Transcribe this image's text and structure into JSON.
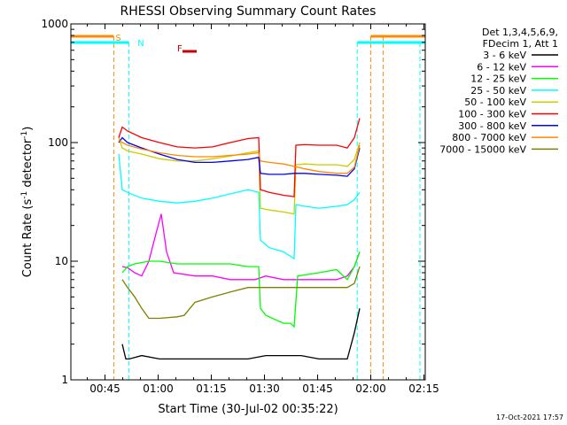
{
  "chart_data": {
    "type": "line",
    "title": "RHESSI Observing Summary Count Rates",
    "xlabel": "Start Time (30-Jul-02 00:35:22)",
    "ylabel_main": "Count Rate (s",
    "ylabel_sup1": "-1",
    "ylabel_mid": " detector",
    "ylabel_sup2": "-1",
    "ylabel_end": ")",
    "x_unit": "minutes after 00:35:22 UT",
    "xlim": [
      0,
      100
    ],
    "ylim": [
      1,
      1000
    ],
    "yscale": "log",
    "x_ticks": [
      {
        "minute": 9.63,
        "label": "00:45"
      },
      {
        "minute": 24.63,
        "label": "01:00"
      },
      {
        "minute": 39.63,
        "label": "01:15"
      },
      {
        "minute": 54.63,
        "label": "01:30"
      },
      {
        "minute": 69.63,
        "label": "01:45"
      },
      {
        "minute": 84.63,
        "label": "02:00"
      },
      {
        "minute": 99.63,
        "label": "02:15"
      }
    ],
    "y_ticks": [
      {
        "value": 1,
        "label": "1"
      },
      {
        "value": 10,
        "label": "10"
      },
      {
        "value": 100,
        "label": "100"
      },
      {
        "value": 1000,
        "label": "1000"
      }
    ],
    "legend_header": [
      "Det 1,3,4,5,6,9,",
      "FDecim 1, Att 1"
    ],
    "legend_position": "right",
    "series": [
      {
        "name": "3 - 6 keV",
        "color": "#000000",
        "points": [
          [
            14.5,
            2
          ],
          [
            15.5,
            1.5
          ],
          [
            16.5,
            1.5
          ],
          [
            20,
            1.6
          ],
          [
            25,
            1.5
          ],
          [
            30,
            1.5
          ],
          [
            40,
            1.5
          ],
          [
            50,
            1.5
          ],
          [
            55,
            1.6
          ],
          [
            60,
            1.6
          ],
          [
            65,
            1.6
          ],
          [
            70,
            1.5
          ],
          [
            78,
            1.5
          ],
          [
            80,
            2.5
          ],
          [
            81.5,
            4
          ]
        ]
      },
      {
        "name": "6 - 12 keV",
        "color": "#ff00ff",
        "points": [
          [
            14.5,
            9
          ],
          [
            16,
            8.8
          ],
          [
            18,
            8
          ],
          [
            20,
            7.5
          ],
          [
            22,
            10
          ],
          [
            24,
            17
          ],
          [
            25.5,
            25
          ],
          [
            27,
            12
          ],
          [
            29,
            8
          ],
          [
            35,
            7.5
          ],
          [
            40,
            7.5
          ],
          [
            45,
            7
          ],
          [
            48,
            7
          ],
          [
            50,
            7
          ],
          [
            52,
            7
          ],
          [
            55,
            7.5
          ],
          [
            60,
            7
          ],
          [
            65,
            7
          ],
          [
            70,
            7
          ],
          [
            75,
            7
          ],
          [
            78,
            7.5
          ],
          [
            80,
            9
          ],
          [
            81.5,
            12
          ]
        ]
      },
      {
        "name": "12 - 25 keV",
        "color": "#00ff00",
        "points": [
          [
            14.5,
            8
          ],
          [
            16,
            9
          ],
          [
            18,
            9.5
          ],
          [
            22,
            10
          ],
          [
            25,
            10
          ],
          [
            30,
            9.5
          ],
          [
            35,
            9.5
          ],
          [
            40,
            9.5
          ],
          [
            45,
            9.5
          ],
          [
            50,
            9
          ],
          [
            53,
            9
          ],
          [
            53.5,
            4
          ],
          [
            55,
            3.5
          ],
          [
            60,
            3
          ],
          [
            62,
            3
          ],
          [
            63,
            2.8
          ],
          [
            64,
            7.5
          ],
          [
            70,
            8
          ],
          [
            75,
            8.5
          ],
          [
            78,
            7
          ],
          [
            80,
            9
          ],
          [
            81.5,
            12
          ]
        ]
      },
      {
        "name": "25 - 50 keV",
        "color": "#00ffff",
        "points": [
          [
            13.5,
            80
          ],
          [
            14.5,
            40
          ],
          [
            16,
            38
          ],
          [
            20,
            34
          ],
          [
            25,
            32
          ],
          [
            30,
            31
          ],
          [
            35,
            32
          ],
          [
            40,
            34
          ],
          [
            45,
            37
          ],
          [
            50,
            40
          ],
          [
            53,
            38
          ],
          [
            53.5,
            15
          ],
          [
            56,
            13
          ],
          [
            60,
            12
          ],
          [
            62,
            11
          ],
          [
            63,
            10.5
          ],
          [
            63.5,
            30
          ],
          [
            66,
            29
          ],
          [
            70,
            28
          ],
          [
            75,
            29
          ],
          [
            78,
            30
          ],
          [
            80,
            33
          ],
          [
            81.5,
            38
          ]
        ]
      },
      {
        "name": "50 - 100 keV",
        "color": "#cccc00",
        "points": [
          [
            13.5,
            110
          ],
          [
            14.5,
            90
          ],
          [
            16,
            85
          ],
          [
            20,
            80
          ],
          [
            25,
            73
          ],
          [
            30,
            70
          ],
          [
            35,
            70
          ],
          [
            40,
            73
          ],
          [
            45,
            77
          ],
          [
            50,
            82
          ],
          [
            53,
            85
          ],
          [
            53.5,
            28
          ],
          [
            56,
            27
          ],
          [
            60,
            26
          ],
          [
            63,
            25
          ],
          [
            63.5,
            65
          ],
          [
            66,
            66
          ],
          [
            70,
            65
          ],
          [
            75,
            65
          ],
          [
            78,
            63
          ],
          [
            80,
            72
          ],
          [
            81.5,
            100
          ]
        ]
      },
      {
        "name": "100 - 300 keV",
        "color": "#ff0000",
        "points": [
          [
            13.5,
            110
          ],
          [
            14.5,
            135
          ],
          [
            16,
            125
          ],
          [
            20,
            110
          ],
          [
            25,
            100
          ],
          [
            30,
            92
          ],
          [
            35,
            90
          ],
          [
            40,
            92
          ],
          [
            45,
            100
          ],
          [
            50,
            108
          ],
          [
            53,
            110
          ],
          [
            53.5,
            40
          ],
          [
            56,
            38
          ],
          [
            60,
            36
          ],
          [
            63,
            35
          ],
          [
            63.5,
            95
          ],
          [
            66,
            96
          ],
          [
            70,
            95
          ],
          [
            75,
            95
          ],
          [
            78,
            90
          ],
          [
            80,
            110
          ],
          [
            81.5,
            160
          ]
        ]
      },
      {
        "name": "300 - 800 keV",
        "color": "#0000ff",
        "points": [
          [
            13.5,
            100
          ],
          [
            14.5,
            110
          ],
          [
            16,
            100
          ],
          [
            20,
            90
          ],
          [
            25,
            80
          ],
          [
            30,
            72
          ],
          [
            35,
            68
          ],
          [
            40,
            68
          ],
          [
            45,
            70
          ],
          [
            50,
            72
          ],
          [
            53,
            75
          ],
          [
            53.5,
            55
          ],
          [
            56,
            54
          ],
          [
            60,
            54
          ],
          [
            63,
            55
          ],
          [
            63.5,
            55
          ],
          [
            66,
            55
          ],
          [
            70,
            54
          ],
          [
            75,
            53
          ],
          [
            78,
            52
          ],
          [
            80,
            60
          ],
          [
            81.5,
            90
          ]
        ]
      },
      {
        "name": "800 - 7000 keV",
        "color": "#ff8800",
        "points": [
          [
            13.5,
            105
          ],
          [
            14.5,
            100
          ],
          [
            16,
            95
          ],
          [
            20,
            88
          ],
          [
            25,
            82
          ],
          [
            30,
            78
          ],
          [
            35,
            76
          ],
          [
            40,
            76
          ],
          [
            45,
            78
          ],
          [
            50,
            80
          ],
          [
            53,
            82
          ],
          [
            53.5,
            70
          ],
          [
            56,
            68
          ],
          [
            60,
            66
          ],
          [
            63,
            63
          ],
          [
            66,
            60
          ],
          [
            70,
            57
          ],
          [
            75,
            55
          ],
          [
            78,
            55
          ],
          [
            80,
            62
          ],
          [
            81.5,
            95
          ]
        ]
      },
      {
        "name": "7000 - 15000 keV",
        "color": "#808000",
        "points": [
          [
            14.5,
            7
          ],
          [
            16,
            6
          ],
          [
            18,
            5
          ],
          [
            20,
            4
          ],
          [
            22,
            3.3
          ],
          [
            25,
            3.3
          ],
          [
            30,
            3.4
          ],
          [
            32,
            3.5
          ],
          [
            35,
            4.5
          ],
          [
            40,
            5
          ],
          [
            45,
            5.5
          ],
          [
            50,
            6
          ],
          [
            53,
            6
          ],
          [
            55,
            6
          ],
          [
            60,
            6
          ],
          [
            65,
            6
          ],
          [
            70,
            6
          ],
          [
            75,
            6
          ],
          [
            78,
            6
          ],
          [
            80,
            6.5
          ],
          [
            81.5,
            9
          ]
        ]
      }
    ],
    "flags": [
      {
        "letter": "S",
        "color": "#ff8800",
        "minute": 12.1
      },
      {
        "letter": "N",
        "color": "#00ffff",
        "minute": 18.3
      },
      {
        "letter": "F",
        "color": "#cc0000",
        "minute": 29.5
      }
    ],
    "flare_bar": {
      "color": "#cc0000",
      "start": 31.5,
      "end": 35.5
    },
    "sun_state": {
      "color": "#ff8800",
      "segments": [
        [
          0,
          12.1
        ],
        [
          84.6,
          100
        ]
      ],
      "boundaries": [
        12.1,
        84.6,
        88.1
      ]
    },
    "night_state": {
      "color": "#00ffff",
      "segments": [
        [
          0,
          16.4
        ],
        [
          80.8,
          100
        ]
      ],
      "boundaries": [
        0,
        16.4,
        80.8,
        98.5
      ]
    },
    "timestamp": "17-Oct-2021 17:57"
  }
}
